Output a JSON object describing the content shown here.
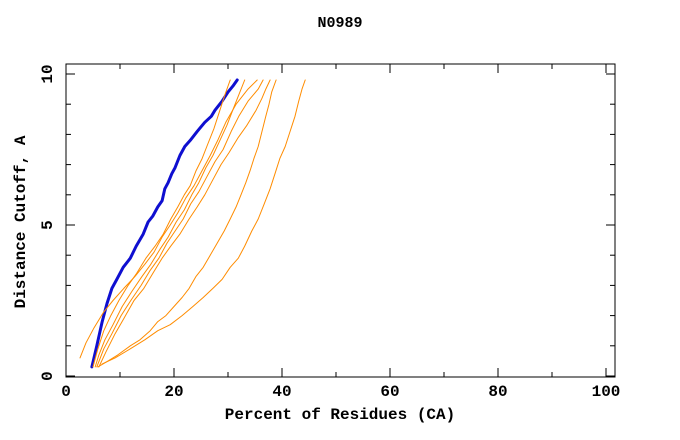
{
  "chart_data": {
    "type": "line",
    "title": "N0989",
    "xlabel": "Percent of Residues (CA)",
    "ylabel": "Distance Cutoff, A",
    "xlim": [
      0,
      100
    ],
    "ylim": [
      0,
      10
    ],
    "grid": false,
    "legend": "none",
    "tick_style": "inward-mirrored",
    "x_major_ticks": [
      0,
      20,
      40,
      60,
      80,
      100
    ],
    "x_minor_ticks": [
      10,
      30,
      50,
      70,
      90
    ],
    "x_tick_labels": [
      "0",
      "20",
      "40",
      "60",
      "80",
      "100"
    ],
    "y_major_ticks": [
      0,
      5,
      10
    ],
    "y_minor_ticks": [
      1,
      2,
      3,
      4,
      6,
      7,
      8,
      9
    ],
    "y_tick_labels": [
      "0",
      "5",
      "10"
    ],
    "colors": {
      "reference": "#0f0fd0",
      "models": "#ff8c00",
      "axis": "#000000",
      "background": "#ffffff"
    },
    "series": [
      {
        "name": "blue-model-curve",
        "color_key": "reference",
        "width": 3,
        "points": [
          [
            4.8,
            0.3
          ],
          [
            5.7,
            1.0
          ],
          [
            6.7,
            1.8
          ],
          [
            7.6,
            2.4
          ],
          [
            8.5,
            2.9
          ],
          [
            9.4,
            3.2
          ],
          [
            10.6,
            3.6
          ],
          [
            11.9,
            3.9
          ],
          [
            13.0,
            4.3
          ],
          [
            14.3,
            4.7
          ],
          [
            15.2,
            5.1
          ],
          [
            16.1,
            5.3
          ],
          [
            17.0,
            5.6
          ],
          [
            17.8,
            5.8
          ],
          [
            18.3,
            6.2
          ],
          [
            18.9,
            6.4
          ],
          [
            19.6,
            6.7
          ],
          [
            20.2,
            6.9
          ],
          [
            21.1,
            7.3
          ],
          [
            22.0,
            7.6
          ],
          [
            23.0,
            7.8
          ],
          [
            24.3,
            8.1
          ],
          [
            25.7,
            8.4
          ],
          [
            26.9,
            8.6
          ],
          [
            27.6,
            8.8
          ],
          [
            28.9,
            9.1
          ],
          [
            30.0,
            9.4
          ],
          [
            30.9,
            9.6
          ],
          [
            31.7,
            9.8
          ]
        ]
      },
      {
        "name": "orange-model-curve-1",
        "color_key": "models",
        "width": 1,
        "points": [
          [
            5.0,
            0.3
          ],
          [
            5.9,
            0.9
          ],
          [
            7.0,
            1.5
          ],
          [
            8.3,
            2.0
          ],
          [
            9.8,
            2.5
          ],
          [
            11.5,
            3.0
          ],
          [
            13.1,
            3.4
          ],
          [
            14.8,
            3.9
          ],
          [
            16.5,
            4.3
          ],
          [
            18.0,
            4.7
          ],
          [
            19.4,
            5.2
          ],
          [
            20.7,
            5.6
          ],
          [
            21.9,
            6.0
          ],
          [
            23.0,
            6.3
          ],
          [
            24.1,
            6.8
          ],
          [
            25.2,
            7.2
          ],
          [
            26.3,
            7.7
          ],
          [
            27.4,
            8.2
          ],
          [
            28.5,
            8.8
          ],
          [
            29.4,
            9.3
          ],
          [
            30.4,
            9.8
          ]
        ]
      },
      {
        "name": "orange-model-curve-2",
        "color_key": "models",
        "width": 1,
        "points": [
          [
            5.4,
            0.3
          ],
          [
            6.1,
            0.7
          ],
          [
            7.2,
            1.2
          ],
          [
            8.7,
            1.7
          ],
          [
            10.4,
            2.3
          ],
          [
            12.2,
            2.8
          ],
          [
            14.1,
            3.3
          ],
          [
            15.7,
            3.7
          ],
          [
            17.4,
            4.2
          ],
          [
            18.9,
            4.6
          ],
          [
            20.4,
            5.1
          ],
          [
            21.9,
            5.5
          ],
          [
            23.3,
            6.0
          ],
          [
            24.6,
            6.4
          ],
          [
            25.9,
            6.9
          ],
          [
            27.2,
            7.3
          ],
          [
            28.5,
            7.8
          ],
          [
            29.8,
            8.3
          ],
          [
            31.1,
            8.9
          ],
          [
            32.2,
            9.4
          ],
          [
            33.1,
            9.8
          ]
        ]
      },
      {
        "name": "orange-model-curve-3",
        "color_key": "models",
        "width": 1,
        "points": [
          [
            2.6,
            0.6
          ],
          [
            3.7,
            1.1
          ],
          [
            5.2,
            1.6
          ],
          [
            6.9,
            2.1
          ],
          [
            8.7,
            2.5
          ],
          [
            10.7,
            2.9
          ],
          [
            12.8,
            3.3
          ],
          [
            14.6,
            3.7
          ],
          [
            16.3,
            4.1
          ],
          [
            17.8,
            4.6
          ],
          [
            19.3,
            5.0
          ],
          [
            20.7,
            5.4
          ],
          [
            22.2,
            5.9
          ],
          [
            23.7,
            6.3
          ],
          [
            25.2,
            6.8
          ],
          [
            26.7,
            7.3
          ],
          [
            28.1,
            7.8
          ],
          [
            29.6,
            8.4
          ],
          [
            31.5,
            9.0
          ],
          [
            33.7,
            9.5
          ],
          [
            35.4,
            9.8
          ]
        ]
      },
      {
        "name": "orange-model-curve-4",
        "color_key": "models",
        "width": 1,
        "points": [
          [
            5.7,
            0.3
          ],
          [
            7.0,
            0.9
          ],
          [
            8.5,
            1.4
          ],
          [
            10.2,
            2.0
          ],
          [
            12.0,
            2.5
          ],
          [
            13.9,
            3.0
          ],
          [
            15.6,
            3.5
          ],
          [
            17.2,
            3.9
          ],
          [
            18.7,
            4.4
          ],
          [
            20.2,
            4.8
          ],
          [
            21.7,
            5.2
          ],
          [
            23.1,
            5.7
          ],
          [
            24.6,
            6.1
          ],
          [
            26.1,
            6.6
          ],
          [
            27.6,
            7.1
          ],
          [
            29.1,
            7.5
          ],
          [
            30.6,
            8.1
          ],
          [
            32.0,
            8.6
          ],
          [
            33.7,
            9.1
          ],
          [
            35.6,
            9.5
          ],
          [
            36.5,
            9.8
          ]
        ]
      },
      {
        "name": "orange-model-curve-5",
        "color_key": "models",
        "width": 1,
        "points": [
          [
            6.1,
            0.3
          ],
          [
            7.4,
            0.8
          ],
          [
            9.1,
            1.4
          ],
          [
            10.7,
            1.9
          ],
          [
            12.6,
            2.5
          ],
          [
            14.4,
            2.9
          ],
          [
            16.1,
            3.4
          ],
          [
            17.8,
            3.9
          ],
          [
            19.4,
            4.3
          ],
          [
            21.1,
            4.7
          ],
          [
            22.8,
            5.2
          ],
          [
            24.3,
            5.6
          ],
          [
            25.7,
            6.0
          ],
          [
            27.2,
            6.5
          ],
          [
            28.7,
            7.0
          ],
          [
            30.2,
            7.4
          ],
          [
            31.9,
            7.9
          ],
          [
            33.5,
            8.3
          ],
          [
            35.2,
            8.8
          ],
          [
            36.3,
            9.2
          ],
          [
            37.0,
            9.5
          ],
          [
            37.8,
            9.8
          ]
        ]
      },
      {
        "name": "orange-model-curve-6",
        "color_key": "models",
        "width": 1,
        "points": [
          [
            5.9,
            0.3
          ],
          [
            7.8,
            0.5
          ],
          [
            9.6,
            0.7
          ],
          [
            11.9,
            1.0
          ],
          [
            13.7,
            1.2
          ],
          [
            15.6,
            1.5
          ],
          [
            17.0,
            1.8
          ],
          [
            18.5,
            2.0
          ],
          [
            20.0,
            2.3
          ],
          [
            21.5,
            2.6
          ],
          [
            22.8,
            2.9
          ],
          [
            24.1,
            3.3
          ],
          [
            25.4,
            3.6
          ],
          [
            26.7,
            4.0
          ],
          [
            28.0,
            4.4
          ],
          [
            29.3,
            4.8
          ],
          [
            30.4,
            5.2
          ],
          [
            31.5,
            5.6
          ],
          [
            32.4,
            6.0
          ],
          [
            33.3,
            6.4
          ],
          [
            34.1,
            6.8
          ],
          [
            34.8,
            7.2
          ],
          [
            35.6,
            7.6
          ],
          [
            36.3,
            8.1
          ],
          [
            37.0,
            8.6
          ],
          [
            37.6,
            9.0
          ],
          [
            38.1,
            9.4
          ],
          [
            38.9,
            9.8
          ]
        ]
      },
      {
        "name": "orange-model-curve-7",
        "color_key": "models",
        "width": 1,
        "points": [
          [
            6.7,
            0.4
          ],
          [
            9.1,
            0.6
          ],
          [
            11.9,
            0.9
          ],
          [
            14.6,
            1.2
          ],
          [
            17.0,
            1.5
          ],
          [
            19.3,
            1.7
          ],
          [
            21.5,
            2.0
          ],
          [
            23.5,
            2.3
          ],
          [
            25.4,
            2.6
          ],
          [
            27.2,
            2.9
          ],
          [
            28.9,
            3.2
          ],
          [
            30.4,
            3.6
          ],
          [
            31.9,
            3.9
          ],
          [
            33.1,
            4.3
          ],
          [
            34.4,
            4.8
          ],
          [
            35.6,
            5.2
          ],
          [
            36.7,
            5.7
          ],
          [
            37.8,
            6.2
          ],
          [
            38.7,
            6.7
          ],
          [
            39.6,
            7.2
          ],
          [
            40.6,
            7.6
          ],
          [
            41.5,
            8.1
          ],
          [
            42.4,
            8.6
          ],
          [
            43.1,
            9.1
          ],
          [
            43.7,
            9.5
          ],
          [
            44.3,
            9.8
          ]
        ]
      }
    ]
  }
}
